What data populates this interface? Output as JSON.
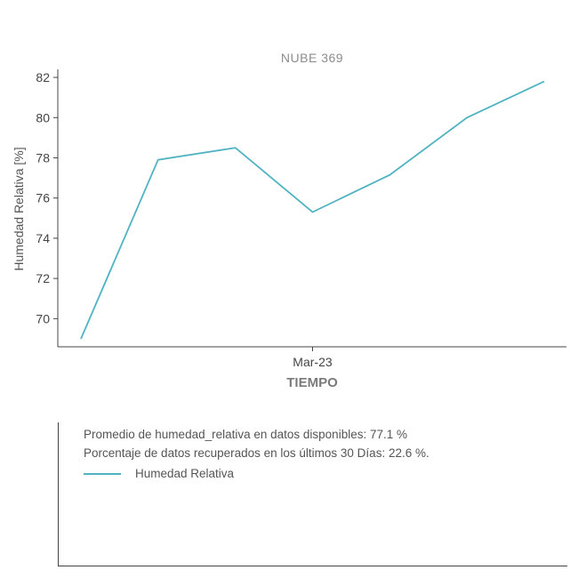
{
  "chart_data": {
    "type": "line",
    "title": "NUBE 369",
    "xlabel": "TIEMPO",
    "ylabel": "Humedad Relativa [%]",
    "x_tick_labels": [
      "Mar-23"
    ],
    "y_ticks": [
      70,
      72,
      74,
      76,
      78,
      80,
      82
    ],
    "ylim": [
      68.6,
      82.4
    ],
    "grid": false,
    "series": [
      {
        "name": "Humedad Relativa",
        "color": "#4fb3c2",
        "values": [
          69.0,
          77.9,
          78.5,
          75.3,
          77.15,
          80.0,
          81.8
        ]
      }
    ]
  },
  "info": {
    "average_text": "Promedio de humedad_relativa en datos disponibles: 77.1 %",
    "recovered_text": "Porcentaje de datos recuperados en los últimos 30 Días: 22.6 %."
  }
}
